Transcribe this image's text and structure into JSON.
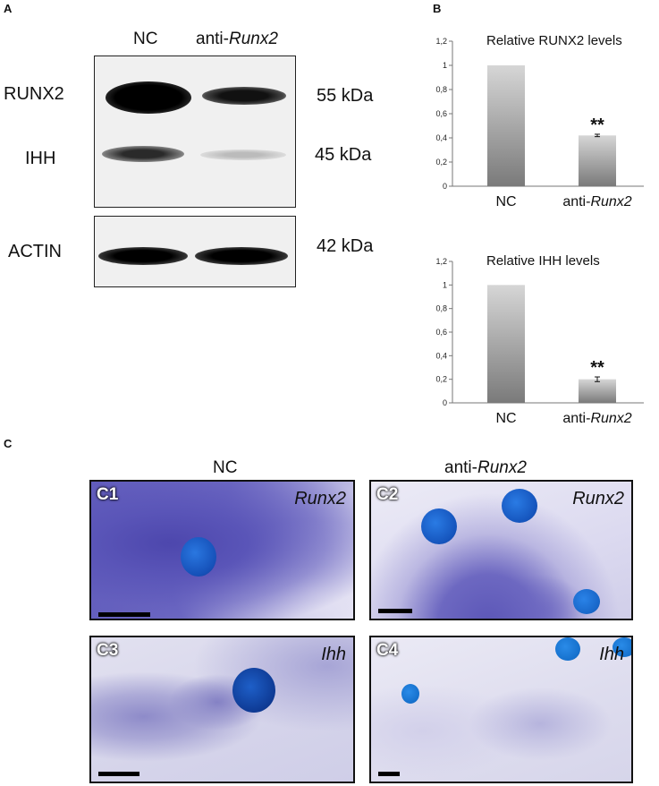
{
  "panel_a": {
    "letter": "A",
    "lanes": {
      "nc": "NC",
      "anti_prefix": "anti-",
      "anti_gene": "Runx2"
    },
    "proteins": [
      {
        "name": "RUNX2",
        "kda": "55 kDa"
      },
      {
        "name": "IHH",
        "kda": "45 kDa"
      },
      {
        "name": "ACTIN",
        "kda": "42 kDa"
      }
    ]
  },
  "panel_b": {
    "letter": "B",
    "chart_data": [
      {
        "type": "bar",
        "title": "Relative RUNX2 levels",
        "categories": [
          "NC",
          "anti-Runx2"
        ],
        "values": [
          1.0,
          0.42
        ],
        "errors": [
          0,
          0.01
        ],
        "significance": [
          "",
          "**"
        ],
        "ylim": [
          0,
          1.2
        ],
        "yticks": [
          "0",
          "0,2",
          "0,4",
          "0,6",
          "0,8",
          "1",
          "1,2"
        ],
        "xlabel": "",
        "ylabel": ""
      },
      {
        "type": "bar",
        "title": "Relative IHH levels",
        "categories": [
          "NC",
          "anti-Runx2"
        ],
        "values": [
          1.0,
          0.2
        ],
        "errors": [
          0,
          0.02
        ],
        "significance": [
          "",
          "**"
        ],
        "ylim": [
          0,
          1.2
        ],
        "yticks": [
          "0",
          "0,2",
          "0,4",
          "0,6",
          "0,8",
          "1",
          "1,2"
        ],
        "xlabel": "",
        "ylabel": ""
      }
    ]
  },
  "panel_c": {
    "letter": "C",
    "col_nc": "NC",
    "col_anti_prefix": "anti-",
    "col_anti_gene": "Runx2",
    "images": [
      {
        "id": "C1",
        "gene": "Runx2"
      },
      {
        "id": "C2",
        "gene": "Runx2"
      },
      {
        "id": "C3",
        "gene": "Ihh"
      },
      {
        "id": "C4",
        "gene": "Ihh"
      }
    ]
  },
  "colors": {
    "stain_purple": "#5b58b8",
    "cell_blue": "#1a5fd0",
    "bar_dark": "#7a7a7a",
    "bar_light": "#d6d6d6"
  }
}
